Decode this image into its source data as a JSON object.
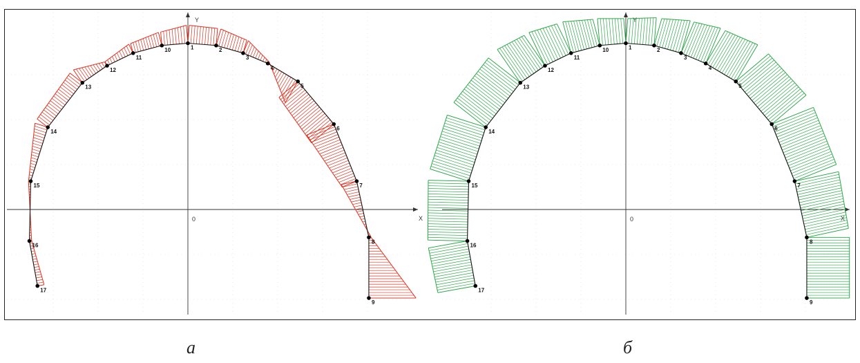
{
  "axes": {
    "x_label": "X",
    "y_label": "Y",
    "origin_label": "0"
  },
  "panels": [
    {
      "caption": "а",
      "diagram_color": "#e0301e",
      "nodes": [
        {
          "id": "1",
          "x": 0.0,
          "y": 3.7
        },
        {
          "id": "2",
          "x": 0.63,
          "y": 3.65
        },
        {
          "id": "3",
          "x": 1.23,
          "y": 3.48
        },
        {
          "id": "4",
          "x": 1.78,
          "y": 3.25
        },
        {
          "id": "5",
          "x": 2.45,
          "y": 2.85
        },
        {
          "id": "6",
          "x": 3.25,
          "y": 1.9
        },
        {
          "id": "7",
          "x": 3.76,
          "y": 0.63
        },
        {
          "id": "8",
          "x": 4.03,
          "y": -0.62
        },
        {
          "id": "9",
          "x": 4.03,
          "y": -1.97
        },
        {
          "id": "10",
          "x": -0.58,
          "y": 3.65
        },
        {
          "id": "11",
          "x": -1.22,
          "y": 3.48
        },
        {
          "id": "12",
          "x": -1.8,
          "y": 3.2
        },
        {
          "id": "13",
          "x": -2.35,
          "y": 2.82
        },
        {
          "id": "14",
          "x": -3.12,
          "y": 1.83
        },
        {
          "id": "15",
          "x": -3.5,
          "y": 0.63
        },
        {
          "id": "16",
          "x": -3.53,
          "y": -0.7
        },
        {
          "id": "17",
          "x": -3.35,
          "y": -1.7
        }
      ],
      "values": {
        "1": 0.4,
        "2": 0.38,
        "3": 0.3,
        "4": 0.05,
        "5": -0.55,
        "6": -0.65,
        "7": -0.35,
        "8": 0.05,
        "9": 1.05,
        "10": 0.3,
        "11": 0.22,
        "12": 0.1,
        "13": 0.35,
        "14": 0.3,
        "15": 0.05,
        "16": -0.05,
        "17": -0.15
      }
    },
    {
      "caption": "б",
      "diagram_color": "#2ea84a",
      "nodes": [
        {
          "id": "1",
          "x": 0.0,
          "y": 3.7
        },
        {
          "id": "2",
          "x": 0.63,
          "y": 3.65
        },
        {
          "id": "3",
          "x": 1.23,
          "y": 3.48
        },
        {
          "id": "4",
          "x": 1.78,
          "y": 3.25
        },
        {
          "id": "5",
          "x": 2.45,
          "y": 2.85
        },
        {
          "id": "6",
          "x": 3.25,
          "y": 1.9
        },
        {
          "id": "7",
          "x": 3.76,
          "y": 0.63
        },
        {
          "id": "8",
          "x": 4.03,
          "y": -0.62
        },
        {
          "id": "9",
          "x": 4.03,
          "y": -1.97
        },
        {
          "id": "10",
          "x": -0.58,
          "y": 3.65
        },
        {
          "id": "11",
          "x": -1.22,
          "y": 3.48
        },
        {
          "id": "12",
          "x": -1.8,
          "y": 3.2
        },
        {
          "id": "13",
          "x": -2.35,
          "y": 2.82
        },
        {
          "id": "14",
          "x": -3.12,
          "y": 1.83
        },
        {
          "id": "15",
          "x": -3.5,
          "y": 0.63
        },
        {
          "id": "16",
          "x": -3.53,
          "y": -0.7
        },
        {
          "id": "17",
          "x": -3.35,
          "y": -1.7
        }
      ],
      "values": {
        "1": 0.55,
        "2": 0.62,
        "3": 0.75,
        "4": 0.85,
        "5": 0.95,
        "6": 1.0,
        "7": 1.0,
        "8": 0.95,
        "9": 0.95,
        "10": 0.6,
        "11": 0.72,
        "12": 0.82,
        "13": 0.9,
        "14": 0.9,
        "15": 0.9,
        "16": 0.88,
        "17": 0.85
      }
    }
  ],
  "segments": [
    [
      "10",
      "1"
    ],
    [
      "1",
      "2"
    ],
    [
      "2",
      "3"
    ],
    [
      "3",
      "4"
    ],
    [
      "4",
      "5"
    ],
    [
      "5",
      "6"
    ],
    [
      "6",
      "7"
    ],
    [
      "7",
      "8"
    ],
    [
      "8",
      "9"
    ],
    [
      "10",
      "11"
    ],
    [
      "11",
      "12"
    ],
    [
      "12",
      "13"
    ],
    [
      "13",
      "14"
    ],
    [
      "14",
      "15"
    ],
    [
      "15",
      "16"
    ],
    [
      "16",
      "17"
    ]
  ]
}
